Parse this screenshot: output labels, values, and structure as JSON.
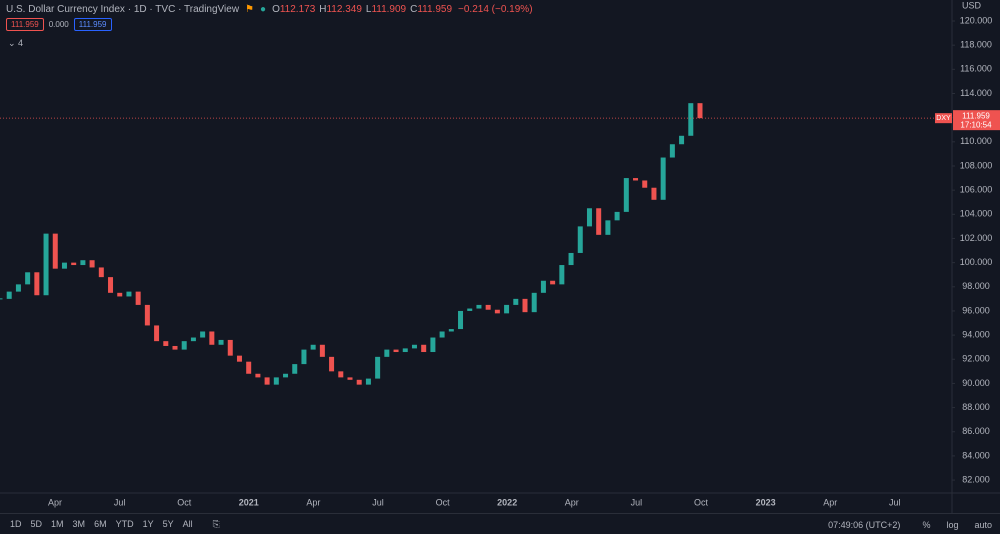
{
  "header": {
    "title": "U.S. Dollar Currency Index · 1D · TVC · TradingView",
    "ohlc": [
      {
        "label": "O",
        "value": "112.173"
      },
      {
        "label": "H",
        "value": "112.349"
      },
      {
        "label": "L",
        "value": "111.909"
      },
      {
        "label": "C",
        "value": "111.959"
      }
    ],
    "change": "−0.214 (−0.19%)",
    "inputs": [
      "111.959",
      "0.000",
      "111.959"
    ],
    "indicators_count": "4"
  },
  "chart": {
    "currency": "USD",
    "values": [
      97.0,
      97.6,
      98.2,
      99.2,
      97.3,
      102.4,
      99.5,
      100.0,
      99.8,
      100.2,
      99.6,
      98.8,
      97.5,
      97.2,
      97.6,
      96.5,
      94.8,
      93.5,
      93.1,
      92.8,
      93.5,
      93.8,
      94.3,
      93.2,
      93.6,
      92.3,
      91.8,
      90.8,
      90.5,
      89.9,
      90.5,
      90.8,
      91.6,
      92.8,
      93.2,
      92.2,
      91.0,
      90.5,
      90.3,
      89.9,
      90.4,
      92.2,
      92.8,
      92.6,
      92.9,
      93.2,
      92.6,
      93.8,
      94.3,
      94.5,
      96.0,
      96.2,
      96.5,
      96.1,
      95.8,
      96.5,
      97.0,
      95.9,
      97.5,
      98.5,
      98.2,
      99.8,
      100.8,
      103.0,
      104.5,
      102.3,
      103.5,
      104.2,
      107.0,
      106.8,
      106.2,
      105.2,
      108.7,
      109.8,
      110.5,
      113.2,
      111.959
    ],
    "up_color": "#26a69a",
    "down_color": "#ef5350",
    "ylim": [
      80.93,
      121.74
    ],
    "yticks": [
      {
        "value": 82,
        "label": "82.000"
      },
      {
        "value": 84,
        "label": "84.000"
      },
      {
        "value": 86,
        "label": "86.000"
      },
      {
        "value": 88,
        "label": "88.000"
      },
      {
        "value": 90,
        "label": "90.000"
      },
      {
        "value": 92,
        "label": "92.000"
      },
      {
        "value": 94,
        "label": "94.000"
      },
      {
        "value": 96,
        "label": "96.000"
      },
      {
        "value": 98,
        "label": "98.000"
      },
      {
        "value": 100,
        "label": "100.000"
      },
      {
        "value": 102,
        "label": "102.000"
      },
      {
        "value": 104,
        "label": "104.000"
      },
      {
        "value": 106,
        "label": "106.000"
      },
      {
        "value": 108,
        "label": "108.000"
      },
      {
        "value": 110,
        "label": "110.000"
      },
      {
        "value": 112,
        "label": "112.000"
      },
      {
        "value": 114,
        "label": "114.000"
      },
      {
        "value": 116,
        "label": "116.000"
      },
      {
        "value": 118,
        "label": "118.000"
      },
      {
        "value": 120,
        "label": "120.000"
      }
    ],
    "xticks": [
      "Apr",
      "Jul",
      "Oct",
      "2021",
      "Apr",
      "Jul",
      "Oct",
      "2022",
      "Apr",
      "Jul",
      "Oct",
      "2023",
      "Apr",
      "Jul"
    ],
    "last_price": {
      "symbol": "DXY",
      "price": "111.959",
      "countdown": "17:10:54"
    }
  },
  "toolbar": {
    "ranges": [
      "1D",
      "5D",
      "1M",
      "3M",
      "6M",
      "YTD",
      "1Y",
      "5Y",
      "All"
    ],
    "clock": "07:49:06 (UTC+2)",
    "options": [
      "%",
      "log",
      "auto"
    ]
  }
}
